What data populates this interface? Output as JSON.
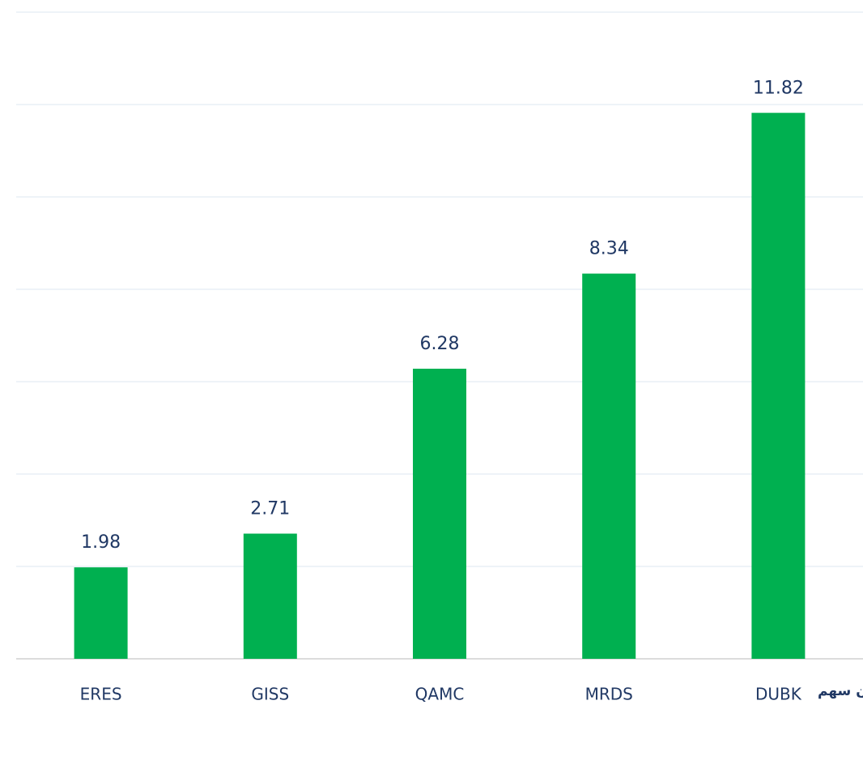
{
  "chart_data": {
    "type": "bar",
    "unit_label": "بالمليون سهم",
    "categories": [
      "ERES",
      "GISS",
      "QAMC",
      "MRDS",
      "DUBK"
    ],
    "values": [
      1.98,
      2.71,
      6.28,
      8.34,
      11.82
    ],
    "color": "#00b050",
    "ylim": [
      0,
      14
    ],
    "yticks": [
      0,
      2,
      4,
      6,
      8,
      10,
      12,
      14
    ],
    "grid": true
  }
}
